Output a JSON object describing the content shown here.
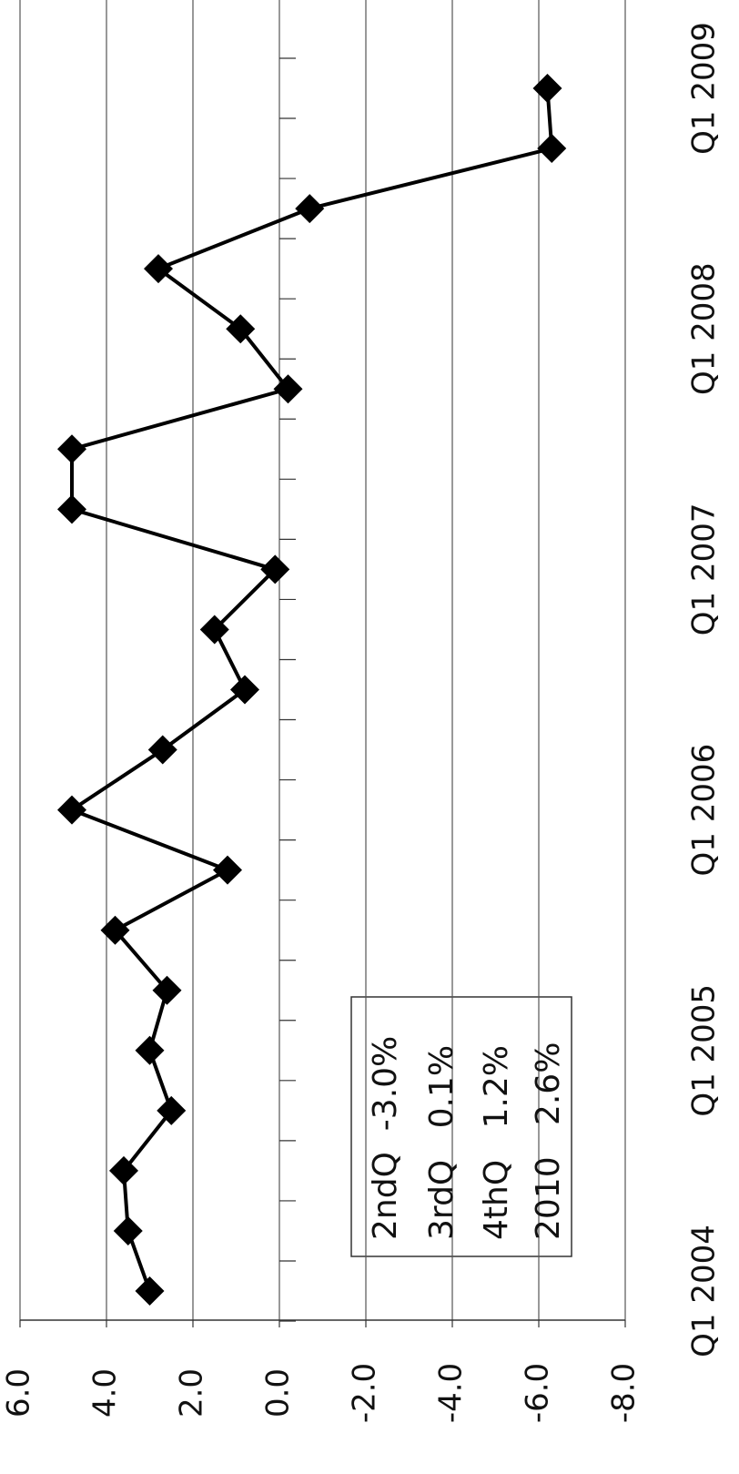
{
  "chart_data": {
    "type": "line",
    "categories": [
      "Q1 2004",
      null,
      null,
      null,
      "Q1 2005",
      null,
      null,
      null,
      "Q1 2006",
      null,
      null,
      null,
      "Q1 2007",
      null,
      null,
      null,
      "Q1 2008",
      null,
      null,
      null,
      "Q1 2009"
    ],
    "series": [
      {
        "name": null,
        "color": "#000000",
        "values": [
          3.0,
          3.5,
          3.6,
          2.5,
          3.0,
          2.6,
          3.8,
          1.2,
          4.8,
          2.7,
          0.8,
          1.5,
          0.1,
          4.8,
          4.8,
          -0.2,
          0.9,
          2.8,
          -0.7,
          -6.3,
          -6.2
        ]
      }
    ],
    "ylim": [
      -8,
      6
    ],
    "yticks": [
      {
        "value": 6,
        "label": "6.0"
      },
      {
        "value": 4,
        "label": "4.0"
      },
      {
        "value": 2,
        "label": "2.0"
      },
      {
        "value": 0,
        "label": "0.0"
      },
      {
        "value": -2,
        "label": "-2.0"
      },
      {
        "value": -4,
        "label": "-4.0"
      },
      {
        "value": -6,
        "label": "-6.0"
      },
      {
        "value": -8,
        "label": "-8.0"
      }
    ],
    "grid": true,
    "annotations": [
      "2ndQ  -3.0%",
      "3rdQ   0.1%",
      "4thQ   1.2%",
      "2010   2.6%"
    ]
  }
}
